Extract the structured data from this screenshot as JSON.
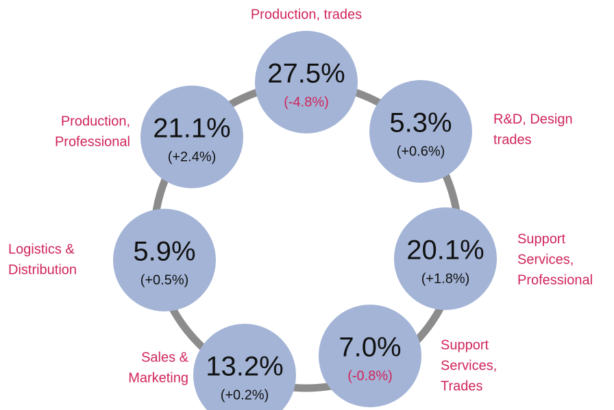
{
  "nodes": [
    {
      "label": [
        "Production, trades"
      ],
      "value": "27.5%",
      "change": "(-4.8%)",
      "change_color": "#d0245a"
    },
    {
      "label": [
        "R&D, Design",
        "trades"
      ],
      "value": "5.3%",
      "change": "(+0.6%)",
      "change_color": "#111111"
    },
    {
      "label": [
        "Support",
        "Services,",
        "Professional"
      ],
      "value": "20.1%",
      "change": "(+1.8%)",
      "change_color": "#111111"
    },
    {
      "label": [
        "Support",
        "Services,",
        "Trades"
      ],
      "value": "7.0%",
      "change": "(-0.8%)",
      "change_color": "#d0245a"
    },
    {
      "label": [
        "Sales &",
        "Marketing"
      ],
      "value": "13.2%",
      "change": "(+0.2%)",
      "change_color": "#111111"
    },
    {
      "label": [
        "Logistics &",
        "Distribution"
      ],
      "value": "5.9%",
      "change": "(+0.5%)",
      "change_color": "#111111"
    },
    {
      "label": [
        "Production,",
        "Professional"
      ],
      "value": "21.1%",
      "change": "(+2.4%)",
      "change_color": "#111111"
    }
  ]
}
